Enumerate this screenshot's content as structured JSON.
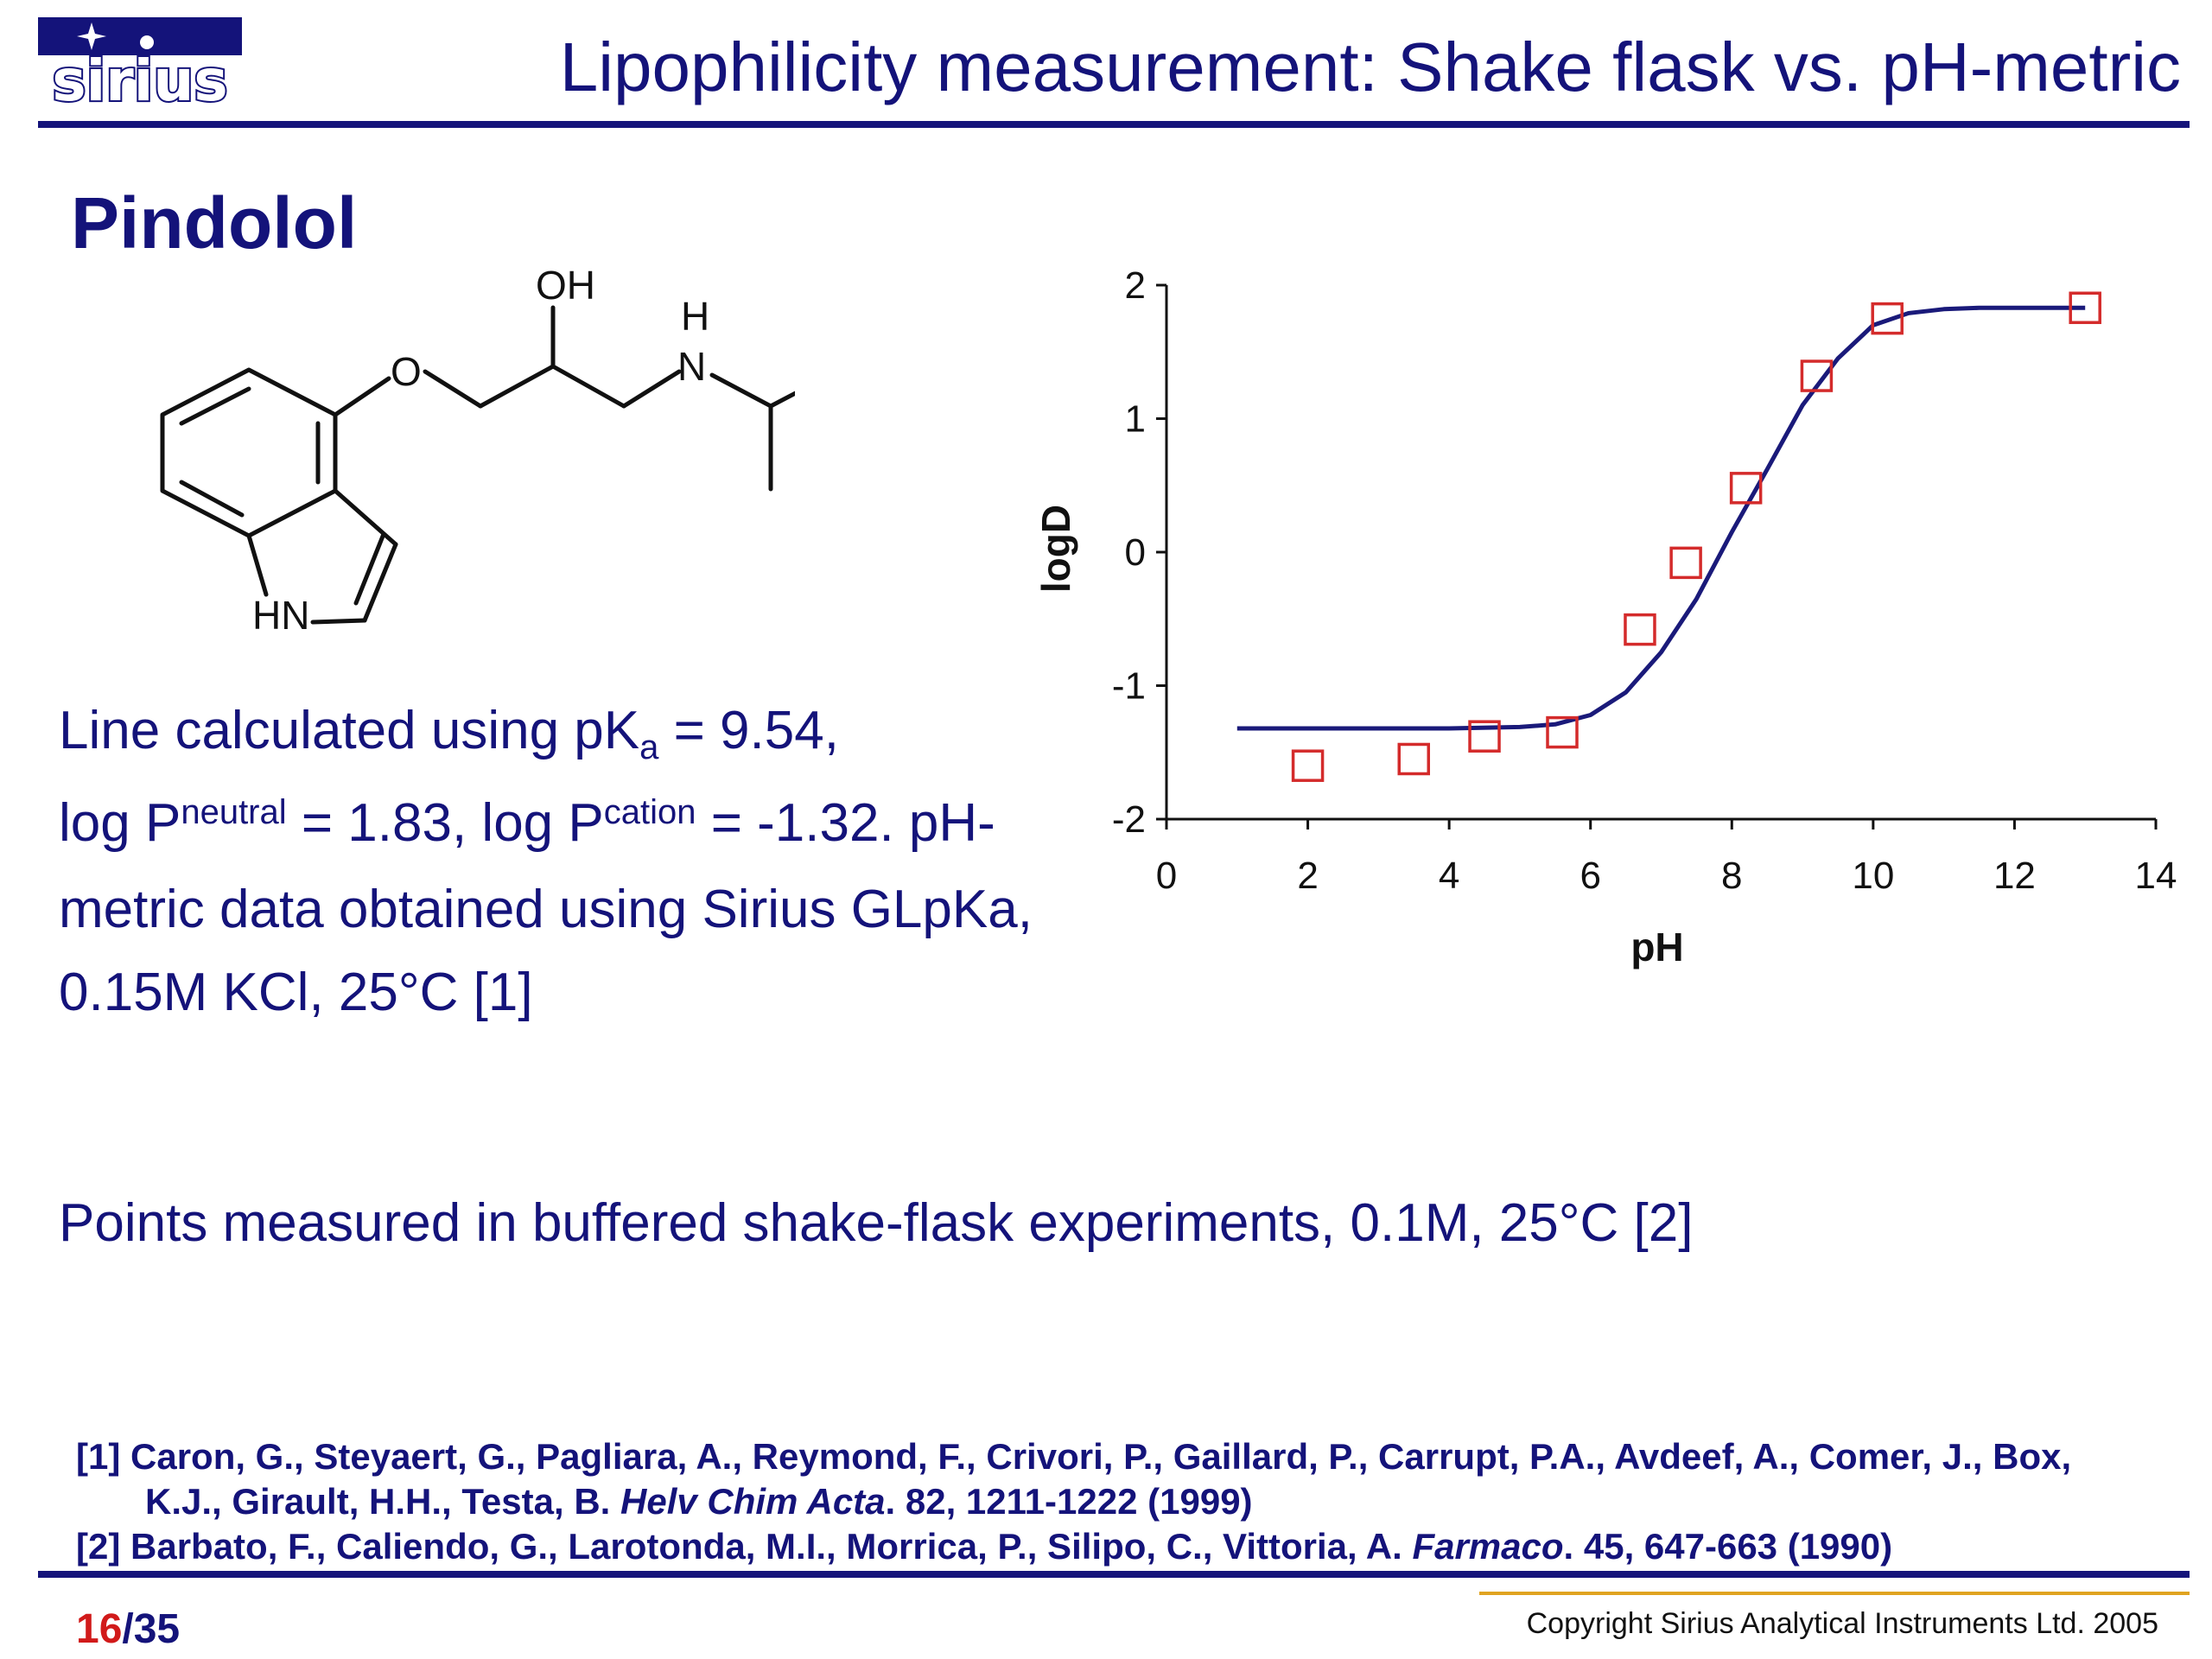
{
  "header": {
    "title": "Lipophilicity measurement: Shake flask vs. pH-metric",
    "logo_text": "sirius",
    "brand_color": "#14137a"
  },
  "compound": {
    "name": "Pindolol",
    "labels": {
      "oh": "OH",
      "h": "H",
      "n": "N",
      "o": "O",
      "hn": "HN"
    }
  },
  "note": {
    "line1_pre": "Line calculated using pK",
    "line1_sub": "a",
    "line1_post": " = 9.54,",
    "line2_a": "log P",
    "line2_sup1": "neutral",
    "line2_b": " = 1.83, log P",
    "line2_sup2": "cation",
    "line2_c": " = -1.32. pH-",
    "line3": "metric data obtained using Sirius GLpKa,",
    "line4": "0.15M KCl, 25°C [1]"
  },
  "points_text": "Points measured in buffered shake-flask experiments, 0.1M, 25°C [2]",
  "references": [
    {
      "line1": "[1] Caron, G., Steyaert, G., Pagliara, A., Reymond, F., Crivori, P., Gaillard, P., Carrupt, P.A., Avdeef, A., Comer, J., Box,",
      "line2_pre": "K.J., Girault, H.H., Testa, B. ",
      "line2_journal": "Helv Chim Acta",
      "line2_post": ". 82, 1211-1222 (1999)"
    },
    {
      "line1_pre": "[2] Barbato, F., Caliendo, G., Larotonda, M.I., Morrica, P., Silipo, C., Vittoria, A. ",
      "line1_journal": "Farmaco",
      "line1_post": ". 45, 647-663 (1990)"
    }
  ],
  "footer": {
    "page_current": "16",
    "page_sep": "/",
    "page_total": "35",
    "copyright": "Copyright Sirius Analytical Instruments Ltd. 2005"
  },
  "chart_data": {
    "type": "scatter",
    "xlabel": "pH",
    "ylabel": "logD",
    "xlim": [
      0,
      14
    ],
    "ylim": [
      -2,
      2
    ],
    "xticks": [
      0,
      2,
      4,
      6,
      8,
      10,
      12,
      14
    ],
    "yticks": [
      -2,
      -1,
      0,
      1,
      2
    ],
    "grid": false,
    "series": [
      {
        "kind": "line",
        "color": "#1a1a7a",
        "x": [
          1.0,
          2.0,
          3.0,
          4.0,
          5.0,
          5.5,
          6.0,
          6.5,
          7.0,
          7.5,
          8.0,
          8.5,
          9.0,
          9.5,
          10.0,
          10.5,
          11.0,
          11.5,
          12.0,
          13.0
        ],
        "y": [
          -1.32,
          -1.32,
          -1.32,
          -1.32,
          -1.31,
          -1.29,
          -1.22,
          -1.05,
          -0.75,
          -0.35,
          0.15,
          0.62,
          1.1,
          1.45,
          1.7,
          1.79,
          1.82,
          1.83,
          1.83,
          1.83
        ]
      },
      {
        "kind": "points",
        "color": "#d42b2b",
        "marker": "square",
        "x": [
          2.0,
          3.5,
          4.5,
          5.6,
          6.7,
          7.35,
          8.2,
          9.2,
          10.2,
          13.0
        ],
        "y": [
          -1.6,
          -1.55,
          -1.38,
          -1.35,
          -0.58,
          -0.08,
          0.48,
          1.32,
          1.75,
          1.83
        ]
      }
    ]
  }
}
